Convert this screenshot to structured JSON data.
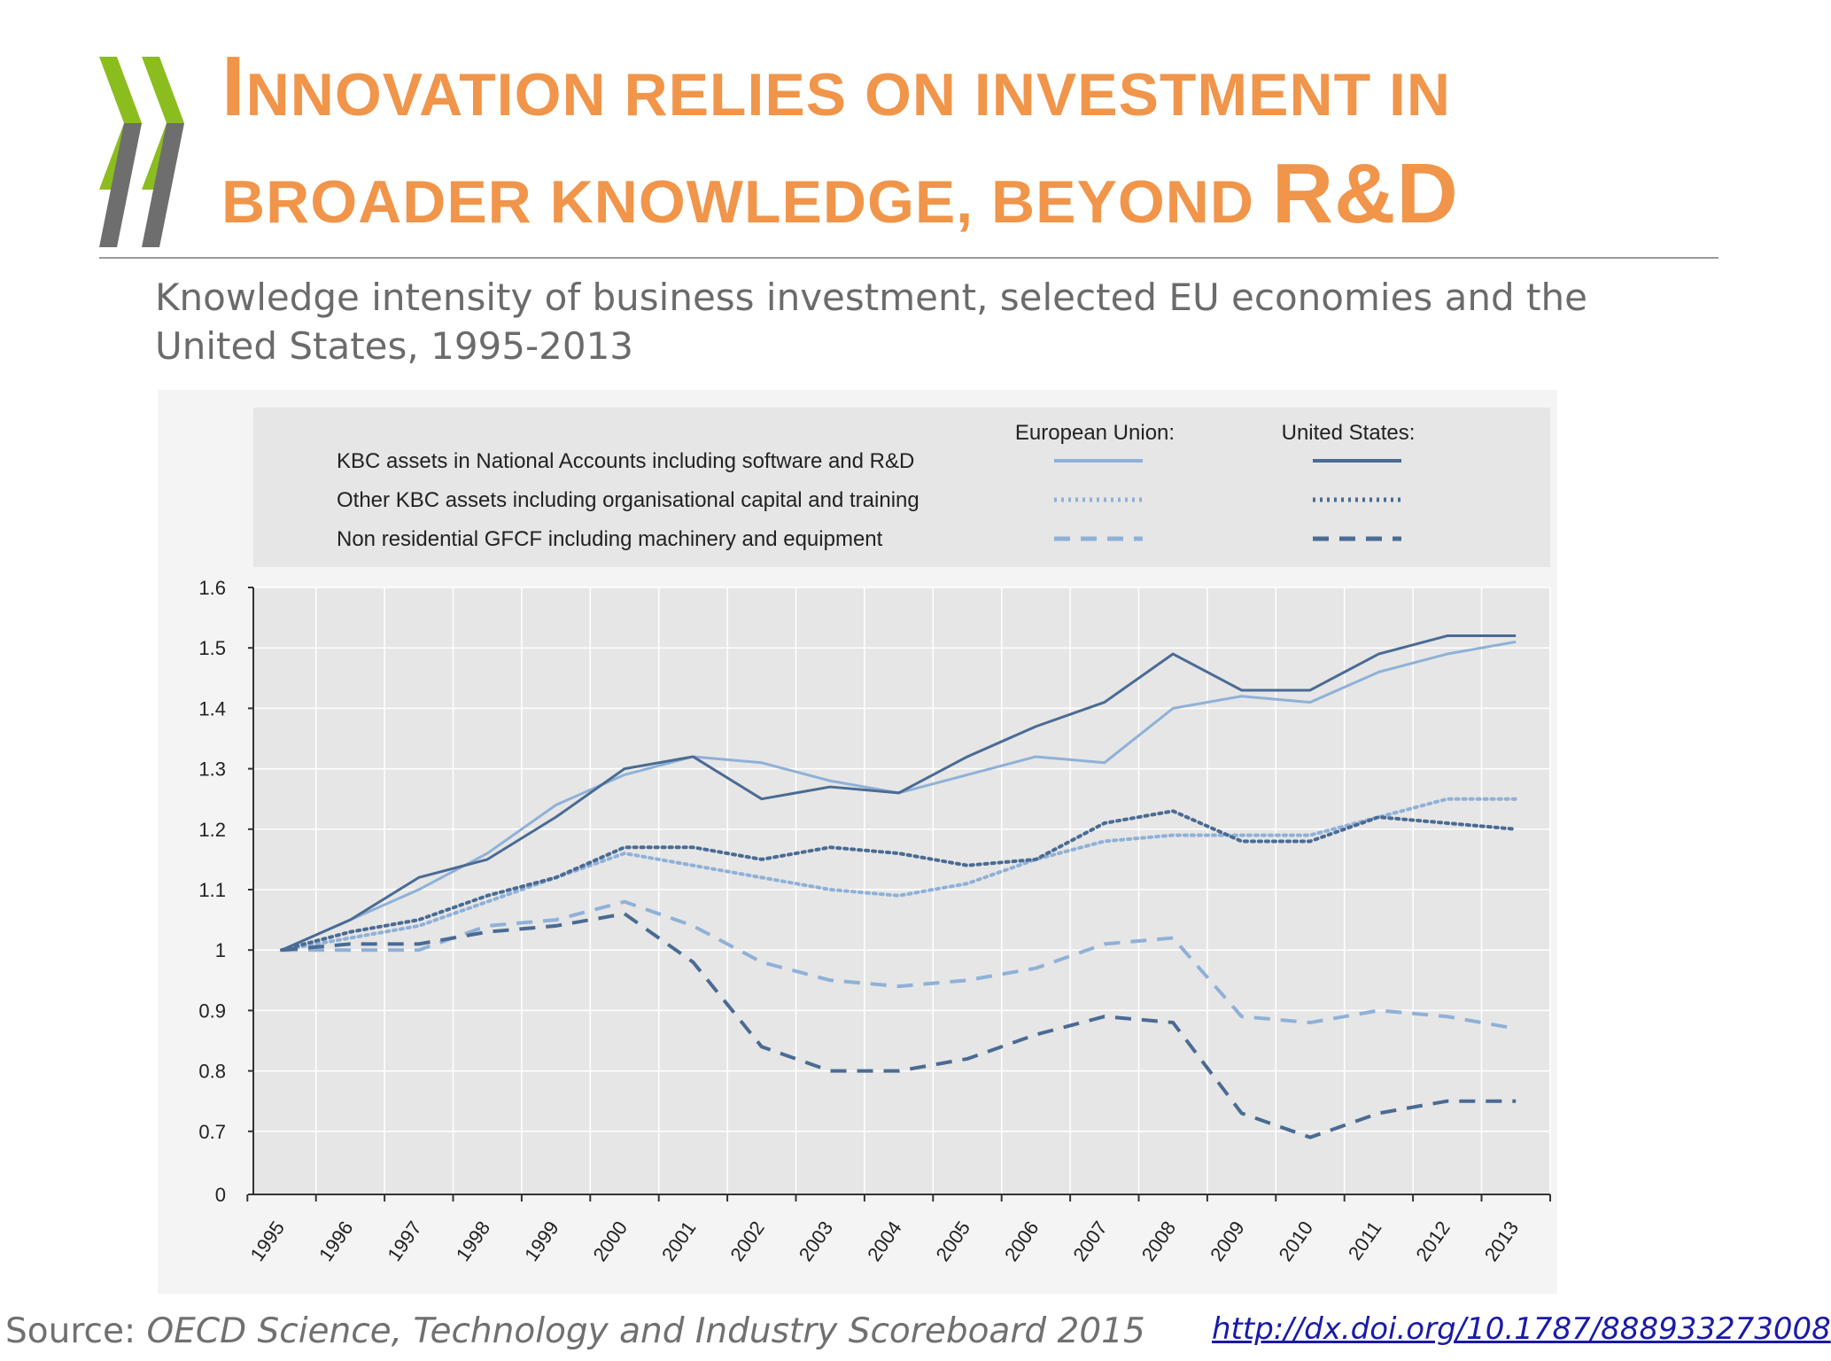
{
  "slide": {
    "title_line1_parts": [
      "I",
      "NNOVATION RELIES ON INVESTMENT IN"
    ],
    "title_line2_parts": [
      "BROADER KNOWLEDGE, BEYOND ",
      "R&D"
    ],
    "subtitle": "Knowledge intensity of business investment, selected EU economies and the United States, 1995-2013",
    "source_label": "Source: ",
    "source_title": "OECD Science, Technology and Industry Scoreboard 2015",
    "url": "http://dx.doi.org/10.1787/888933273008"
  },
  "colors": {
    "title": "#f0954a",
    "logo_green": "#8cbd1f",
    "logo_gray": "#6e6e6e",
    "eu_line": "#8fb1d8",
    "us_line": "#4a6b93",
    "plot_bg": "#e6e6e6",
    "legend_bg": "#e6e6e6"
  },
  "chart_data": {
    "type": "line",
    "x": [
      "1995",
      "1996",
      "1997",
      "1998",
      "1999",
      "2000",
      "2001",
      "2002",
      "2003",
      "2004",
      "2005",
      "2006",
      "2007",
      "2008",
      "2009",
      "2010",
      "2011",
      "2012",
      "2013"
    ],
    "y_ticks": [
      "0",
      "0.7",
      "0.8",
      "0.9",
      "1",
      "1.1",
      "1.2",
      "1.3",
      "1.4",
      "1.5",
      "1.6"
    ],
    "y_axis_broken": true,
    "ylim": [
      0.6,
      1.6
    ],
    "grid": true,
    "legend": {
      "header_eu": "European Union:",
      "header_us": "United States:",
      "rows": [
        {
          "label": "KBC assets in National Accounts including software and R&D",
          "style": "solid"
        },
        {
          "label": "Other KBC assets including organisational capital and training",
          "style": "dotted"
        },
        {
          "label": "Non residential GFCF including machinery and equipment",
          "style": "dashed"
        }
      ]
    },
    "series": [
      {
        "group": "European Union",
        "style": "solid",
        "values": [
          1.0,
          1.05,
          1.1,
          1.16,
          1.24,
          1.29,
          1.32,
          1.31,
          1.28,
          1.26,
          1.29,
          1.32,
          1.31,
          1.4,
          1.42,
          1.41,
          1.46,
          1.49,
          1.51
        ]
      },
      {
        "group": "United States",
        "style": "solid",
        "values": [
          1.0,
          1.05,
          1.12,
          1.15,
          1.22,
          1.3,
          1.32,
          1.25,
          1.27,
          1.26,
          1.32,
          1.37,
          1.41,
          1.49,
          1.43,
          1.43,
          1.49,
          1.52,
          1.52
        ]
      },
      {
        "group": "European Union",
        "style": "dotted",
        "values": [
          1.0,
          1.02,
          1.04,
          1.08,
          1.12,
          1.16,
          1.14,
          1.12,
          1.1,
          1.09,
          1.11,
          1.15,
          1.18,
          1.19,
          1.19,
          1.19,
          1.22,
          1.25,
          1.25
        ]
      },
      {
        "group": "United States",
        "style": "dotted",
        "values": [
          1.0,
          1.03,
          1.05,
          1.09,
          1.12,
          1.17,
          1.17,
          1.15,
          1.17,
          1.16,
          1.14,
          1.15,
          1.21,
          1.23,
          1.18,
          1.18,
          1.22,
          1.21,
          1.2
        ]
      },
      {
        "group": "European Union",
        "style": "dashed",
        "values": [
          1.0,
          1.0,
          1.0,
          1.04,
          1.05,
          1.08,
          1.04,
          0.98,
          0.95,
          0.94,
          0.95,
          0.97,
          1.01,
          1.02,
          0.89,
          0.88,
          0.9,
          0.89,
          0.87
        ]
      },
      {
        "group": "United States",
        "style": "dashed",
        "values": [
          1.0,
          1.01,
          1.01,
          1.03,
          1.04,
          1.06,
          0.98,
          0.84,
          0.8,
          0.8,
          0.82,
          0.86,
          0.89,
          0.88,
          0.73,
          0.69,
          0.73,
          0.75,
          0.75
        ]
      }
    ]
  }
}
